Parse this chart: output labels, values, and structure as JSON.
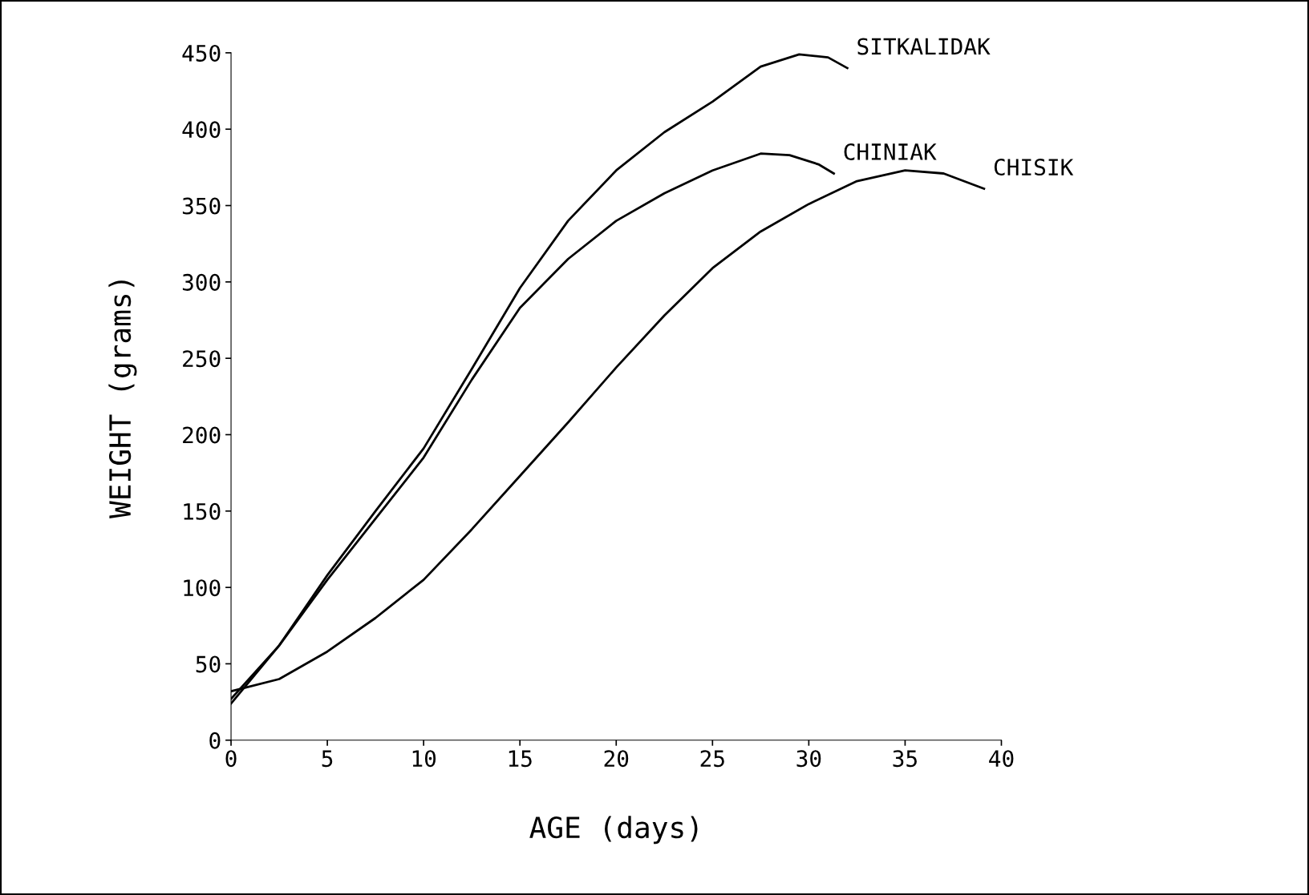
{
  "chart_data": {
    "type": "line",
    "xlabel": "AGE (days)",
    "ylabel": "WEIGHT (grams)",
    "xlim": [
      0,
      40
    ],
    "xticks": [
      0,
      5,
      10,
      15,
      20,
      25,
      30,
      35,
      40
    ],
    "ylim": [
      0,
      450
    ],
    "yticks": [
      0,
      50,
      100,
      150,
      200,
      250,
      300,
      350,
      400,
      450
    ],
    "grid": false,
    "legend": false,
    "marker": "none",
    "line_style": "solid",
    "series": [
      {
        "name": "SITKALIDAK",
        "color": "#000000",
        "x": [
          0,
          2.5,
          5,
          7.5,
          10,
          12.5,
          15,
          17.5,
          20,
          22.5,
          25,
          27.5,
          29.5,
          31,
          32
        ],
        "values": [
          24,
          62,
          108,
          150,
          191,
          243,
          296,
          340,
          373,
          398,
          418,
          441,
          449,
          447,
          440
        ]
      },
      {
        "name": "CHINIAK",
        "color": "#000000",
        "x": [
          0,
          2.5,
          5,
          7.5,
          10,
          12.5,
          15,
          17.5,
          20,
          22.5,
          25,
          27.5,
          29,
          30.5,
          31.3
        ],
        "values": [
          27,
          62,
          105,
          145,
          185,
          236,
          283,
          315,
          340,
          358,
          373,
          384,
          383,
          377,
          371
        ]
      },
      {
        "name": "CHISIK",
        "color": "#000000",
        "x": [
          0,
          2.5,
          5,
          7.5,
          10,
          12.5,
          15,
          17.5,
          20,
          22.5,
          25,
          27.5,
          30,
          32.5,
          35,
          37,
          39.1
        ],
        "values": [
          32,
          40,
          58,
          80,
          105,
          138,
          173,
          208,
          244,
          278,
          309,
          333,
          351,
          366,
          373,
          371,
          361
        ]
      }
    ]
  }
}
